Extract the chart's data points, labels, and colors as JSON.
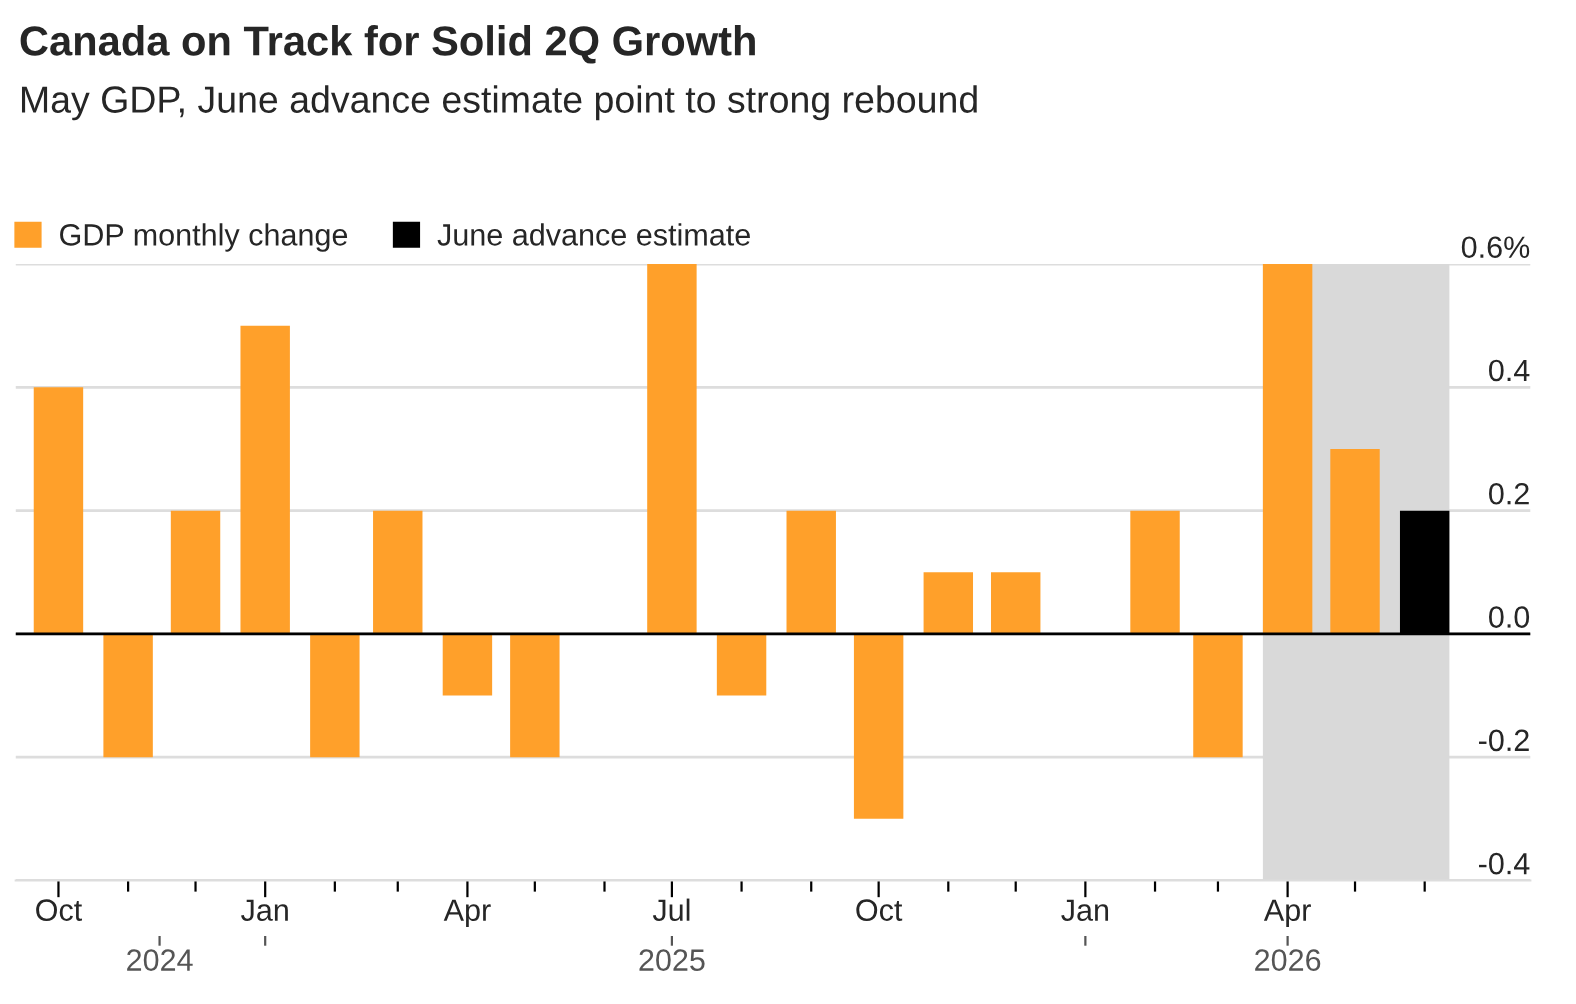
{
  "chart_data": {
    "type": "bar",
    "title": "Canada on Track for Solid 2Q Growth",
    "subtitle": "May GDP, June advance estimate point to strong rebound",
    "x": [
      "2024-10",
      "2024-11",
      "2024-12",
      "2025-01",
      "2025-02",
      "2025-03",
      "2025-04",
      "2025-05",
      "2025-06",
      "2025-07",
      "2025-08",
      "2025-09",
      "2025-10",
      "2025-11",
      "2025-12",
      "2026-01",
      "2026-02",
      "2026-03",
      "2026-04",
      "2026-05",
      "2026-06"
    ],
    "series": [
      {
        "name": "GDP monthly change",
        "color": "#ffa02a",
        "values": [
          0.4,
          -0.2,
          0.2,
          0.5,
          -0.2,
          0.2,
          -0.1,
          -0.2,
          0.0,
          0.6,
          -0.1,
          0.2,
          -0.3,
          0.1,
          0.1,
          0.0,
          0.2,
          -0.2,
          0.6,
          0.3,
          null
        ]
      },
      {
        "name": "June advance estimate",
        "color": "#000000",
        "values": [
          null,
          null,
          null,
          null,
          null,
          null,
          null,
          null,
          null,
          null,
          null,
          null,
          null,
          null,
          null,
          null,
          null,
          null,
          null,
          null,
          0.2
        ]
      }
    ],
    "xlim": [
      "2024-09-12",
      "2026-07-18"
    ],
    "xticks": [
      {
        "value": "2024-10",
        "label": "Oct"
      },
      {
        "value": "2024-11",
        "label": null
      },
      {
        "value": "2024-12",
        "label": null
      },
      {
        "value": "2025-01",
        "label": "Jan"
      },
      {
        "value": "2025-02",
        "label": null
      },
      {
        "value": "2025-03",
        "label": null
      },
      {
        "value": "2025-04",
        "label": "Apr"
      },
      {
        "value": "2025-05",
        "label": null
      },
      {
        "value": "2025-06",
        "label": null
      },
      {
        "value": "2025-07",
        "label": "Jul"
      },
      {
        "value": "2025-08",
        "label": null
      },
      {
        "value": "2025-09",
        "label": null
      },
      {
        "value": "2025-10",
        "label": "Oct"
      },
      {
        "value": "2025-11",
        "label": null
      },
      {
        "value": "2025-12",
        "label": null
      },
      {
        "value": "2026-01",
        "label": "Jan"
      },
      {
        "value": "2026-02",
        "label": null
      },
      {
        "value": "2026-03",
        "label": null
      },
      {
        "value": "2026-04",
        "label": "Apr"
      },
      {
        "value": "2026-05",
        "label": null
      },
      {
        "value": "2026-06",
        "label": null
      }
    ],
    "x2lim": [
      "2024-09-12",
      "2026-07-18"
    ],
    "x2ticks": [
      {
        "value": "2024-11-15",
        "label": "2024"
      },
      {
        "value": "2025-01",
        "label": null
      },
      {
        "value": "2025-07",
        "label": "2025"
      },
      {
        "value": "2026-01",
        "label": null
      },
      {
        "value": "2026-04",
        "label": "2026"
      }
    ],
    "ylim": [
      -0.4,
      0.6
    ],
    "yticks": [
      {
        "value": -0.4,
        "label": "-0.4"
      },
      {
        "value": -0.2,
        "label": "-0.2"
      },
      {
        "value": 0,
        "label": "0.0"
      },
      {
        "value": 0.2,
        "label": "0.2"
      },
      {
        "value": 0.4,
        "label": "0.4"
      },
      {
        "value": 0.6,
        "label": "0.6%"
      }
    ],
    "bands": [
      {
        "axis": "x",
        "from": "2026-03-21",
        "to": "2026-06-12",
        "color": "#d9d9d9"
      }
    ],
    "ref_lines": [
      {
        "axis": "y",
        "value": 0,
        "color": "#000000"
      }
    ],
    "grid": "y",
    "legend": "top left"
  }
}
